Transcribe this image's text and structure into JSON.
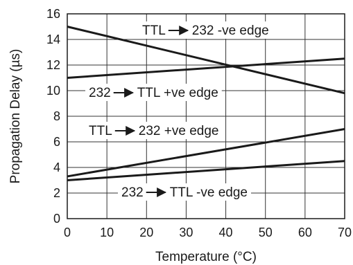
{
  "chart_data": {
    "type": "line",
    "title": "",
    "xlabel": "Temperature (°C)",
    "ylabel": "Propagation Delay (µs)",
    "xlim": [
      0,
      70
    ],
    "ylim": [
      0,
      16
    ],
    "x_ticks": [
      0,
      10,
      20,
      30,
      40,
      50,
      60,
      70
    ],
    "y_ticks": [
      0,
      2,
      4,
      6,
      8,
      10,
      12,
      14,
      16
    ],
    "grid": true,
    "series": [
      {
        "name": "TTL → 232 -ve edge",
        "x": [
          0,
          70
        ],
        "values": [
          15.0,
          9.8
        ],
        "label": {
          "from": "TTL",
          "to": "232 -ve edge"
        }
      },
      {
        "name": "232 → TTL +ve edge",
        "x": [
          0,
          70
        ],
        "values": [
          11.0,
          12.5
        ],
        "label": {
          "from": "232",
          "to": "TTL +ve edge"
        }
      },
      {
        "name": "TTL → 232 +ve edge",
        "x": [
          0,
          70
        ],
        "values": [
          3.3,
          7.0
        ],
        "label": {
          "from": "TTL",
          "to": "232 +ve edge"
        }
      },
      {
        "name": "232 → TTL -ve edge",
        "x": [
          0,
          70
        ],
        "values": [
          3.0,
          4.5
        ],
        "label": {
          "from": "232",
          "to": "TTL -ve edge"
        }
      }
    ]
  }
}
